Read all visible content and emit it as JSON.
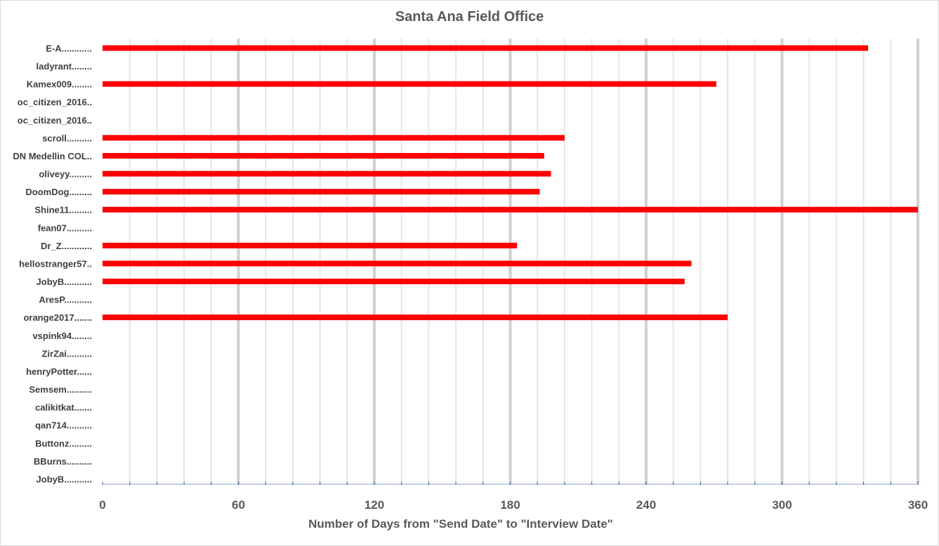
{
  "chart_data": {
    "type": "bar",
    "orientation": "horizontal",
    "title": "Santa Ana Field Office",
    "xlabel": "Number of Days from \"Send Date\" to \"Interview Date\"",
    "ylabel": "",
    "xlim": [
      0,
      360
    ],
    "x_ticks": [
      "0",
      "60",
      "120",
      "180",
      "240",
      "300",
      "360"
    ],
    "x_major_step": 60,
    "x_minor_step": 12,
    "grid": true,
    "legend": "none",
    "bar_color": "#ff0000",
    "categories": [
      "E-A............",
      "ladyrant........",
      "Kamex009........",
      "oc_citizen_2016..",
      "oc_citizen_2016..",
      "scroll..........",
      "DN Medellin COL..",
      "oliveyy.........",
      "DoomDog.........",
      "Shine11.........",
      "fean07..........",
      "Dr_Z............",
      "hellostranger57..",
      "JobyB...........",
      "AresP...........",
      "orange2017.......",
      "vspink94........",
      "ZirZai..........",
      "henryPotter......",
      "Semsem..........",
      "calikitkat.......",
      "qan714..........",
      "Buttonz.........",
      "BBurns..........",
      "JobyB..........."
    ],
    "values": [
      338,
      null,
      271,
      null,
      null,
      204,
      195,
      198,
      193,
      360,
      null,
      183,
      260,
      257,
      null,
      276,
      null,
      null,
      null,
      null,
      null,
      null,
      null,
      null,
      null
    ]
  }
}
